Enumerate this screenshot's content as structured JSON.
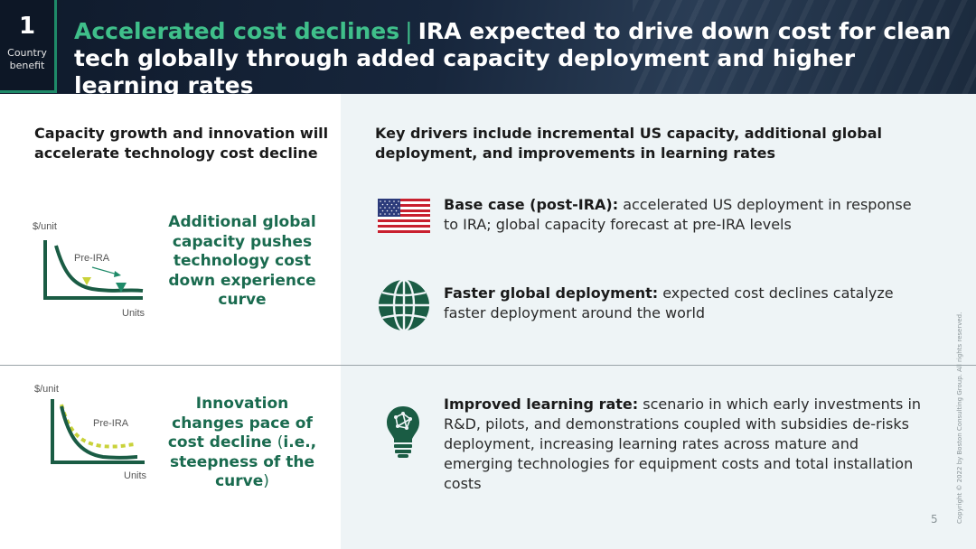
{
  "header": {
    "chapter_number": "1",
    "chapter_label": "Country benefit",
    "title_accent": "Accelerated cost declines",
    "title_separator": "|",
    "title_main": "IRA expected to drive down cost for clean tech globally through added capacity deployment and higher learning rates"
  },
  "left": {
    "heading": "Capacity growth and  innovation will accelerate technology cost decline",
    "diagram1": {
      "y_label": "$/unit",
      "x_label": "Units",
      "curve_label": "Pre-IRA",
      "callout": "Additional global capacity pushes technology cost down experience curve"
    },
    "diagram2": {
      "y_label": "$/unit",
      "x_label": "Units",
      "curve_label": "Pre-IRA",
      "callout_pre": "Innovation changes pace of cost decline",
      "callout_paren_open": "(",
      "callout_paren_text": "i.e., steepness of the curve",
      "callout_paren_close": ")"
    }
  },
  "right": {
    "heading": "Key drivers include incremental US capacity, additional global deployment, and improvements in learning rates",
    "drivers": [
      {
        "icon": "us-flag-icon",
        "bold": "Base case (post-IRA):",
        "text": " accelerated US deployment in response to IRA; global capacity forecast at pre-IRA levels"
      },
      {
        "icon": "globe-icon",
        "bold": "Faster global deployment:",
        "text": " expected cost declines catalyze faster deployment around the world"
      },
      {
        "icon": "lightbulb-icon",
        "bold": "Improved learning rate:",
        "text": " scenario in which early investments in R&D, pilots, and demonstrations coupled with subsidies de-risks deployment, increasing learning rates across mature and emerging technologies for equipment costs and total installation costs"
      }
    ]
  },
  "footer": {
    "copyright": "Copyright © 2022 by Boston Consulting Group. All rights reserved.",
    "page_number": "5"
  },
  "colors": {
    "accent_green": "#3fbf8a",
    "dark_green": "#1a5c44",
    "callout_green": "#1a6b4f",
    "yellow": "#c9d23a",
    "teal": "#1e8a68",
    "panel": "#eef4f6"
  }
}
